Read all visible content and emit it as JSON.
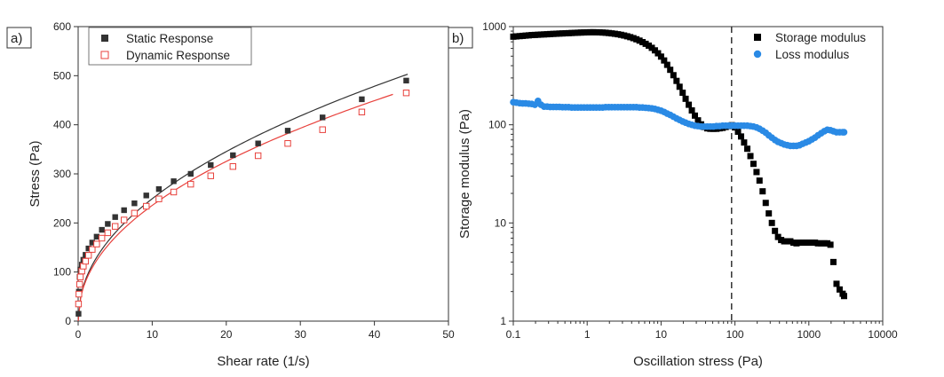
{
  "chart_data": [
    {
      "panel": "a)",
      "type": "scatter",
      "xlabel": "Shear rate (1/s)",
      "ylabel": "Stress (Pa)",
      "xlim": [
        0,
        50
      ],
      "ylim": [
        0,
        600
      ],
      "xticks": [
        "0",
        "10",
        "20",
        "30",
        "40",
        "50"
      ],
      "yticks": [
        "0",
        "100",
        "200",
        "300",
        "400",
        "500",
        "600"
      ],
      "legend_position": "top-left",
      "series": [
        {
          "name": "Static Response",
          "marker": "filled-square",
          "color": "#333333",
          "x": [
            0.05,
            0.1,
            0.2,
            0.3,
            0.5,
            0.7,
            1.0,
            1.4,
            1.9,
            2.5,
            3.2,
            4.0,
            5.0,
            6.2,
            7.6,
            9.2,
            10.9,
            12.9,
            15.2,
            17.9,
            20.9,
            24.3,
            28.3,
            33.0,
            38.3,
            44.3
          ],
          "y": [
            15,
            60,
            90,
            105,
            115,
            125,
            135,
            148,
            160,
            172,
            186,
            198,
            212,
            226,
            240,
            256,
            269,
            285,
            300,
            318,
            338,
            362,
            388,
            415,
            452,
            490
          ]
        },
        {
          "name": "Dynamic Response",
          "marker": "open-square",
          "color": "#e8413c",
          "x": [
            0.05,
            0.1,
            0.2,
            0.3,
            0.5,
            0.7,
            1.0,
            1.4,
            1.9,
            2.5,
            3.2,
            4.0,
            5.0,
            6.2,
            7.6,
            9.2,
            10.9,
            12.9,
            15.2,
            17.9,
            20.9,
            24.3,
            28.3,
            33.0,
            38.3,
            44.3
          ],
          "y": [
            35,
            55,
            75,
            90,
            102,
            112,
            122,
            134,
            146,
            157,
            169,
            180,
            193,
            206,
            220,
            234,
            249,
            263,
            279,
            296,
            315,
            337,
            362,
            390,
            426,
            465
          ]
        }
      ],
      "fit_lines": [
        {
          "series": "Static Response",
          "color": "#333333",
          "x_range": [
            0,
            44.5
          ],
          "k": 84.5,
          "n": 0.47
        },
        {
          "series": "Dynamic Response",
          "color": "#e8413c",
          "x_range": [
            0,
            42.5
          ],
          "k": 80.8,
          "n": 0.465
        }
      ]
    },
    {
      "panel": "b)",
      "type": "scatter",
      "xlabel": "Oscillation stress (Pa)",
      "ylabel": "Storage modulus (Pa)",
      "xscale": "log",
      "yscale": "log",
      "xlim": [
        0.1,
        10000
      ],
      "ylim": [
        1,
        1000
      ],
      "xticks": [
        "0.1",
        "1",
        "10",
        "100",
        "1000",
        "10000"
      ],
      "yticks": [
        "1",
        "10",
        "100",
        "1000"
      ],
      "vline_x": 90,
      "legend_position": "top-right",
      "series": [
        {
          "name": "Storage modulus",
          "marker": "filled-square",
          "color": "#000000",
          "x": [
            0.1,
            0.11,
            0.122,
            0.134,
            0.147,
            0.162,
            0.178,
            0.196,
            0.216,
            0.237,
            0.261,
            0.287,
            0.316,
            0.348,
            0.383,
            0.421,
            0.463,
            0.51,
            0.562,
            0.618,
            0.681,
            0.749,
            0.825,
            0.908,
            1.0,
            1.1,
            1.21,
            1.33,
            1.47,
            1.62,
            1.78,
            1.96,
            2.15,
            2.37,
            2.61,
            2.87,
            3.16,
            3.48,
            3.83,
            4.22,
            4.64,
            5.11,
            5.62,
            6.19,
            6.81,
            7.5,
            8.25,
            9.09,
            10.0,
            11.0,
            12.1,
            13.3,
            14.7,
            16.2,
            17.8,
            19.6,
            21.5,
            23.7,
            26.1,
            28.7,
            31.6,
            34.8,
            38.3,
            42.2,
            46.4,
            51.1,
            56.2,
            61.9,
            68.1,
            75.0,
            82.5,
            90.9,
            100,
            110,
            121,
            133,
            147,
            162,
            178,
            196,
            215,
            237,
            261,
            287,
            316,
            348,
            383,
            422,
            464,
            511,
            562,
            619,
            681,
            750,
            825,
            909,
            1000,
            1100,
            1210,
            1330,
            1470,
            1620,
            1780,
            1960,
            2150,
            2370,
            2610,
            2870,
            3000
          ],
          "y": [
            790,
            795,
            800,
            805,
            810,
            815,
            820,
            823,
            826,
            830,
            833,
            836,
            840,
            843,
            846,
            850,
            852,
            855,
            858,
            861,
            864,
            867,
            870,
            872,
            874,
            876,
            876,
            875,
            873,
            870,
            866,
            860,
            853,
            845,
            836,
            825,
            812,
            797,
            781,
            763,
            743,
            720,
            695,
            668,
            640,
            608,
            573,
            535,
            495,
            452,
            408,
            363,
            320,
            280,
            244,
            212,
            184,
            160,
            140,
            124,
            111,
            101,
            95,
            92,
            91,
            91,
            91,
            92,
            93,
            95,
            97,
            99,
            94,
            85,
            76,
            66,
            57,
            48,
            40,
            33,
            27,
            21,
            16,
            12.5,
            10,
            8.3,
            7.2,
            6.7,
            6.5,
            6.5,
            6.5,
            6.3,
            6.2,
            6.3,
            6.3,
            6.3,
            6.3,
            6.3,
            6.3,
            6.2,
            6.2,
            6.2,
            6.2,
            6.0,
            4.0,
            2.4,
            2.1,
            1.9,
            1.8
          ]
        },
        {
          "name": "Loss modulus",
          "marker": "filled-circle",
          "color": "#2a8ae5",
          "x": [
            0.1,
            0.11,
            0.122,
            0.134,
            0.147,
            0.162,
            0.178,
            0.196,
            0.216,
            0.237,
            0.261,
            0.287,
            0.316,
            0.348,
            0.383,
            0.421,
            0.463,
            0.51,
            0.562,
            0.618,
            0.681,
            0.749,
            0.825,
            0.908,
            1.0,
            1.1,
            1.21,
            1.33,
            1.47,
            1.62,
            1.78,
            1.96,
            2.15,
            2.37,
            2.61,
            2.87,
            3.16,
            3.48,
            3.83,
            4.22,
            4.64,
            5.11,
            5.62,
            6.19,
            6.81,
            7.5,
            8.25,
            9.09,
            10.0,
            11.0,
            12.1,
            13.3,
            14.7,
            16.2,
            17.8,
            19.6,
            21.5,
            23.7,
            26.1,
            28.7,
            31.6,
            34.8,
            38.3,
            42.2,
            46.4,
            51.1,
            56.2,
            61.9,
            68.1,
            75.0,
            82.5,
            90.9,
            100,
            110,
            121,
            133,
            147,
            162,
            178,
            196,
            215,
            237,
            261,
            287,
            316,
            348,
            383,
            422,
            464,
            511,
            562,
            619,
            681,
            750,
            825,
            909,
            1000,
            1100,
            1210,
            1330,
            1470,
            1620,
            1780,
            1960,
            2150,
            2370,
            2610,
            2870,
            3000
          ],
          "y": [
            170,
            168,
            166,
            165,
            165,
            164,
            163,
            160,
            175,
            160,
            153,
            153,
            152,
            152,
            152,
            152,
            151,
            151,
            151,
            150,
            150,
            150,
            150,
            150,
            150,
            150,
            150,
            150,
            150,
            150,
            151,
            151,
            151,
            151,
            151,
            151,
            151,
            151,
            151,
            151,
            151,
            150,
            150,
            149,
            148,
            147,
            145,
            142,
            139,
            135,
            130,
            126,
            121,
            116,
            112,
            108,
            105,
            102,
            100,
            98,
            97,
            96,
            96,
            96,
            96,
            96,
            97,
            97,
            98,
            98,
            98,
            98,
            98,
            98,
            98,
            98,
            98,
            97,
            96,
            94,
            91,
            87,
            83,
            78,
            74,
            70,
            67,
            65,
            63,
            62,
            61,
            61,
            61,
            62,
            64,
            66,
            68,
            71,
            74,
            78,
            82,
            86,
            89,
            88,
            86,
            84,
            84,
            84,
            84
          ]
        }
      ]
    }
  ]
}
